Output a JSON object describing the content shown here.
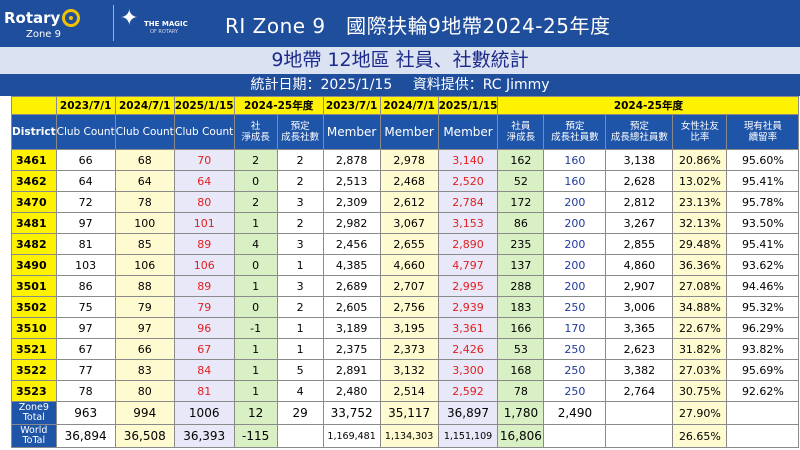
{
  "banner": {
    "logo_word": "Rotary",
    "logo_zone": "Zone 9",
    "magic_text": "THE MAGIC",
    "magic_sub": "OF ROTARY",
    "title": "RI Zone 9　國際扶輪9地帶2024-25年度"
  },
  "subtitle": "9地帶 12地區 社員、社數統計",
  "info": {
    "date": "統計日期：2025/1/15",
    "source": "資料提供：RC Jimmy"
  },
  "header_top": [
    "2023/7/1",
    "2024/7/1",
    "2025/1/15",
    "2024-25年度",
    "2023/7/1",
    "2024/7/1",
    "2025/1/15",
    "2024-25年度"
  ],
  "header_bottom": {
    "district": "District",
    "club_count": "Club Count",
    "club_net": "社\n淨成長",
    "club_target": "預定\n成長社數",
    "member": "Member",
    "member_net": "社員\n淨成長",
    "member_target": "預定\n成長社員數",
    "member_total_target": "預定\n成長總社員數",
    "female_ratio": "女性社友\n比率",
    "retention": "現有社員\n續留率"
  },
  "rows": [
    {
      "district": "3461",
      "c2023": "66",
      "c2024": "68",
      "c2025": "70",
      "cnet": "2",
      "ctgt": "2",
      "m2023": "2,878",
      "m2024": "2,978",
      "m2025": "3,140",
      "mnet": "162",
      "mtgt": "160",
      "mtot": "3,138",
      "female": "20.86%",
      "ret": "95.60%"
    },
    {
      "district": "3462",
      "c2023": "64",
      "c2024": "64",
      "c2025": "64",
      "cnet": "0",
      "ctgt": "2",
      "m2023": "2,513",
      "m2024": "2,468",
      "m2025": "2,520",
      "mnet": "52",
      "mtgt": "160",
      "mtot": "2,628",
      "female": "13.02%",
      "ret": "95.41%"
    },
    {
      "district": "3470",
      "c2023": "72",
      "c2024": "78",
      "c2025": "80",
      "cnet": "2",
      "ctgt": "3",
      "m2023": "2,309",
      "m2024": "2,612",
      "m2025": "2,784",
      "mnet": "172",
      "mtgt": "200",
      "mtot": "2,812",
      "female": "23.13%",
      "ret": "95.78%"
    },
    {
      "district": "3481",
      "c2023": "97",
      "c2024": "100",
      "c2025": "101",
      "cnet": "1",
      "ctgt": "2",
      "m2023": "2,982",
      "m2024": "3,067",
      "m2025": "3,153",
      "mnet": "86",
      "mtgt": "200",
      "mtot": "3,267",
      "female": "32.13%",
      "ret": "93.50%"
    },
    {
      "district": "3482",
      "c2023": "81",
      "c2024": "85",
      "c2025": "89",
      "cnet": "4",
      "ctgt": "3",
      "m2023": "2,456",
      "m2024": "2,655",
      "m2025": "2,890",
      "mnet": "235",
      "mtgt": "200",
      "mtot": "2,855",
      "female": "29.48%",
      "ret": "95.41%"
    },
    {
      "district": "3490",
      "c2023": "103",
      "c2024": "106",
      "c2025": "106",
      "cnet": "0",
      "ctgt": "1",
      "m2023": "4,385",
      "m2024": "4,660",
      "m2025": "4,797",
      "mnet": "137",
      "mtgt": "200",
      "mtot": "4,860",
      "female": "36.36%",
      "ret": "93.62%"
    },
    {
      "district": "3501",
      "c2023": "86",
      "c2024": "88",
      "c2025": "89",
      "cnet": "1",
      "ctgt": "3",
      "m2023": "2,689",
      "m2024": "2,707",
      "m2025": "2,995",
      "mnet": "288",
      "mtgt": "200",
      "mtot": "2,907",
      "female": "27.08%",
      "ret": "94.46%"
    },
    {
      "district": "3502",
      "c2023": "75",
      "c2024": "79",
      "c2025": "79",
      "cnet": "0",
      "ctgt": "2",
      "m2023": "2,605",
      "m2024": "2,756",
      "m2025": "2,939",
      "mnet": "183",
      "mtgt": "250",
      "mtot": "3,006",
      "female": "34.88%",
      "ret": "95.32%"
    },
    {
      "district": "3510",
      "c2023": "97",
      "c2024": "97",
      "c2025": "96",
      "cnet": "-1",
      "ctgt": "1",
      "m2023": "3,189",
      "m2024": "3,195",
      "m2025": "3,361",
      "mnet": "166",
      "mtgt": "170",
      "mtot": "3,365",
      "female": "22.67%",
      "ret": "96.29%"
    },
    {
      "district": "3521",
      "c2023": "67",
      "c2024": "66",
      "c2025": "67",
      "cnet": "1",
      "ctgt": "1",
      "m2023": "2,375",
      "m2024": "2,373",
      "m2025": "2,426",
      "mnet": "53",
      "mtgt": "250",
      "mtot": "2,623",
      "female": "31.82%",
      "ret": "93.82%"
    },
    {
      "district": "3522",
      "c2023": "77",
      "c2024": "83",
      "c2025": "84",
      "cnet": "1",
      "ctgt": "5",
      "m2023": "2,891",
      "m2024": "3,132",
      "m2025": "3,300",
      "mnet": "168",
      "mtgt": "250",
      "mtot": "3,382",
      "female": "27.03%",
      "ret": "95.69%"
    },
    {
      "district": "3523",
      "c2023": "78",
      "c2024": "80",
      "c2025": "81",
      "cnet": "1",
      "ctgt": "4",
      "m2023": "2,480",
      "m2024": "2,514",
      "m2025": "2,592",
      "mnet": "78",
      "mtgt": "250",
      "mtot": "2,764",
      "female": "30.75%",
      "ret": "92.62%"
    }
  ],
  "zone_total": {
    "label": "Zone9\nTotal",
    "c2023": "963",
    "c2024": "994",
    "c2025": "1006",
    "cnet": "12",
    "ctgt": "29",
    "m2023": "33,752",
    "m2024": "35,117",
    "m2025": "36,897",
    "mnet": "1,780",
    "mtot": "2,490",
    "female": "27.90%"
  },
  "world_total": {
    "label": "World\nToTal",
    "c2023": "36,894",
    "c2024": "36,508",
    "c2025": "36,393",
    "cnet": "-115",
    "m2023": "1,169,481",
    "m2024": "1,134,303",
    "m2025": "1,151,109",
    "mnet": "16,806",
    "female": "26.65%"
  }
}
